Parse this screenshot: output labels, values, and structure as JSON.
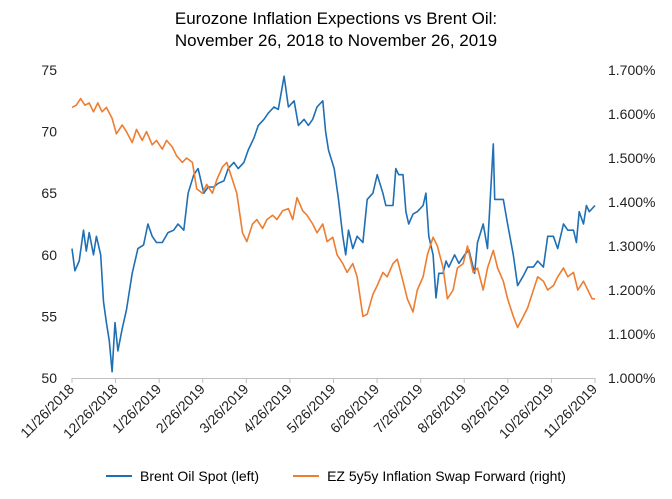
{
  "chart_data": {
    "type": "line",
    "title": [
      "Eurozone Inflation Expections vs Brent Oil:",
      "November 26, 2018 to November 26, 2019"
    ],
    "x_tick_labels": [
      "11/26/2018",
      "12/26/2018",
      "1/26/2019",
      "2/26/2019",
      "3/26/2019",
      "4/26/2019",
      "5/26/2019",
      "6/26/2019",
      "7/26/2019",
      "8/26/2019",
      "9/26/2019",
      "10/26/2019",
      "11/26/2019"
    ],
    "x_range": [
      "2018-11-26",
      "2019-11-26"
    ],
    "y_left": {
      "ticks": [
        "50",
        "55",
        "60",
        "65",
        "70",
        "75"
      ],
      "ylim": [
        50,
        75
      ]
    },
    "y_right": {
      "ticks": [
        "1.000%",
        "1.100%",
        "1.200%",
        "1.300%",
        "1.400%",
        "1.500%",
        "1.600%",
        "1.700%"
      ],
      "ylim": [
        1.0,
        1.7
      ]
    },
    "grid": false,
    "legend_position": "bottom",
    "series": [
      {
        "name": "Brent Oil Spot (left)",
        "axis": "left",
        "color": "#1f6fb4",
        "points": [
          [
            "2018-11-26",
            60.5
          ],
          [
            "2018-11-28",
            58.7
          ],
          [
            "2018-12-01",
            59.5
          ],
          [
            "2018-12-04",
            62.0
          ],
          [
            "2018-12-06",
            60.3
          ],
          [
            "2018-12-08",
            61.8
          ],
          [
            "2018-12-11",
            60.0
          ],
          [
            "2018-12-13",
            61.5
          ],
          [
            "2018-12-16",
            60.0
          ],
          [
            "2018-12-18",
            56.2
          ],
          [
            "2018-12-20",
            54.5
          ],
          [
            "2018-12-22",
            53.0
          ],
          [
            "2018-12-24",
            50.5
          ],
          [
            "2018-12-26",
            54.5
          ],
          [
            "2018-12-28",
            52.2
          ],
          [
            "2018-12-31",
            54.0
          ],
          [
            "2019-01-03",
            55.5
          ],
          [
            "2019-01-07",
            58.5
          ],
          [
            "2019-01-11",
            60.5
          ],
          [
            "2019-01-15",
            60.8
          ],
          [
            "2019-01-18",
            62.5
          ],
          [
            "2019-01-21",
            61.5
          ],
          [
            "2019-01-24",
            61.0
          ],
          [
            "2019-01-28",
            61.0
          ],
          [
            "2019-02-01",
            61.8
          ],
          [
            "2019-02-05",
            62.0
          ],
          [
            "2019-02-08",
            62.5
          ],
          [
            "2019-02-12",
            62.0
          ],
          [
            "2019-02-15",
            65.0
          ],
          [
            "2019-02-19",
            66.5
          ],
          [
            "2019-02-22",
            67.0
          ],
          [
            "2019-02-26",
            65.0
          ],
          [
            "2019-03-01",
            65.5
          ],
          [
            "2019-03-05",
            65.5
          ],
          [
            "2019-03-08",
            65.8
          ],
          [
            "2019-03-12",
            66.0
          ],
          [
            "2019-03-15",
            67.0
          ],
          [
            "2019-03-19",
            67.5
          ],
          [
            "2019-03-22",
            67.0
          ],
          [
            "2019-03-26",
            67.5
          ],
          [
            "2019-03-29",
            68.5
          ],
          [
            "2019-04-02",
            69.5
          ],
          [
            "2019-04-05",
            70.5
          ],
          [
            "2019-04-09",
            71.0
          ],
          [
            "2019-04-12",
            71.5
          ],
          [
            "2019-04-16",
            72.0
          ],
          [
            "2019-04-19",
            71.8
          ],
          [
            "2019-04-23",
            74.5
          ],
          [
            "2019-04-26",
            72.0
          ],
          [
            "2019-04-30",
            72.5
          ],
          [
            "2019-05-03",
            70.5
          ],
          [
            "2019-05-07",
            71.0
          ],
          [
            "2019-05-10",
            70.5
          ],
          [
            "2019-05-13",
            71.0
          ],
          [
            "2019-05-16",
            72.0
          ],
          [
            "2019-05-20",
            72.5
          ],
          [
            "2019-05-22",
            70.0
          ],
          [
            "2019-05-24",
            68.5
          ],
          [
            "2019-05-28",
            67.0
          ],
          [
            "2019-05-31",
            64.5
          ],
          [
            "2019-06-03",
            61.5
          ],
          [
            "2019-06-05",
            60.0
          ],
          [
            "2019-06-07",
            62.0
          ],
          [
            "2019-06-10",
            60.5
          ],
          [
            "2019-06-13",
            61.5
          ],
          [
            "2019-06-17",
            61.0
          ],
          [
            "2019-06-20",
            64.5
          ],
          [
            "2019-06-24",
            65.0
          ],
          [
            "2019-06-27",
            66.5
          ],
          [
            "2019-07-01",
            65.0
          ],
          [
            "2019-07-03",
            64.0
          ],
          [
            "2019-07-08",
            64.0
          ],
          [
            "2019-07-10",
            67.0
          ],
          [
            "2019-07-12",
            66.5
          ],
          [
            "2019-07-15",
            66.5
          ],
          [
            "2019-07-17",
            63.5
          ],
          [
            "2019-07-19",
            62.5
          ],
          [
            "2019-07-22",
            63.3
          ],
          [
            "2019-07-25",
            63.5
          ],
          [
            "2019-07-29",
            64.0
          ],
          [
            "2019-07-31",
            65.0
          ],
          [
            "2019-08-02",
            61.5
          ],
          [
            "2019-08-05",
            60.0
          ],
          [
            "2019-08-07",
            56.5
          ],
          [
            "2019-08-09",
            58.5
          ],
          [
            "2019-08-12",
            58.5
          ],
          [
            "2019-08-14",
            59.5
          ],
          [
            "2019-08-16",
            59.0
          ],
          [
            "2019-08-20",
            60.0
          ],
          [
            "2019-08-23",
            59.3
          ],
          [
            "2019-08-27",
            60.0
          ],
          [
            "2019-08-30",
            60.4
          ],
          [
            "2019-09-03",
            58.5
          ],
          [
            "2019-09-05",
            61.0
          ],
          [
            "2019-09-09",
            62.5
          ],
          [
            "2019-09-12",
            60.5
          ],
          [
            "2019-09-16",
            69.0
          ],
          [
            "2019-09-17",
            64.5
          ],
          [
            "2019-09-19",
            64.5
          ],
          [
            "2019-09-23",
            64.5
          ],
          [
            "2019-09-26",
            62.5
          ],
          [
            "2019-09-30",
            60.0
          ],
          [
            "2019-10-03",
            57.5
          ],
          [
            "2019-10-07",
            58.3
          ],
          [
            "2019-10-10",
            59.0
          ],
          [
            "2019-10-14",
            59.0
          ],
          [
            "2019-10-17",
            59.5
          ],
          [
            "2019-10-21",
            59.0
          ],
          [
            "2019-10-24",
            61.5
          ],
          [
            "2019-10-28",
            61.5
          ],
          [
            "2019-10-31",
            60.5
          ],
          [
            "2019-11-04",
            62.5
          ],
          [
            "2019-11-07",
            62.0
          ],
          [
            "2019-11-11",
            62.0
          ],
          [
            "2019-11-13",
            61.0
          ],
          [
            "2019-11-15",
            63.5
          ],
          [
            "2019-11-18",
            62.5
          ],
          [
            "2019-11-20",
            64.0
          ],
          [
            "2019-11-22",
            63.5
          ],
          [
            "2019-11-26",
            64.0
          ]
        ]
      },
      {
        "name": "EZ 5y5y Inflation Swap Forward (right)",
        "axis": "right",
        "color": "#ed7d31",
        "points": [
          [
            "2018-11-26",
            1.615
          ],
          [
            "2018-11-29",
            1.62
          ],
          [
            "2018-12-02",
            1.635
          ],
          [
            "2018-12-05",
            1.62
          ],
          [
            "2018-12-08",
            1.625
          ],
          [
            "2018-12-11",
            1.605
          ],
          [
            "2018-12-14",
            1.625
          ],
          [
            "2018-12-17",
            1.605
          ],
          [
            "2018-12-20",
            1.615
          ],
          [
            "2018-12-24",
            1.59
          ],
          [
            "2018-12-27",
            1.555
          ],
          [
            "2018-12-31",
            1.575
          ],
          [
            "2019-01-03",
            1.56
          ],
          [
            "2019-01-07",
            1.535
          ],
          [
            "2019-01-10",
            1.565
          ],
          [
            "2019-01-14",
            1.54
          ],
          [
            "2019-01-17",
            1.56
          ],
          [
            "2019-01-21",
            1.53
          ],
          [
            "2019-01-24",
            1.54
          ],
          [
            "2019-01-28",
            1.52
          ],
          [
            "2019-01-31",
            1.54
          ],
          [
            "2019-02-04",
            1.525
          ],
          [
            "2019-02-07",
            1.505
          ],
          [
            "2019-02-11",
            1.49
          ],
          [
            "2019-02-14",
            1.5
          ],
          [
            "2019-02-18",
            1.49
          ],
          [
            "2019-02-21",
            1.43
          ],
          [
            "2019-02-25",
            1.42
          ],
          [
            "2019-02-28",
            1.44
          ],
          [
            "2019-03-04",
            1.42
          ],
          [
            "2019-03-07",
            1.45
          ],
          [
            "2019-03-11",
            1.48
          ],
          [
            "2019-03-14",
            1.49
          ],
          [
            "2019-03-18",
            1.45
          ],
          [
            "2019-03-21",
            1.42
          ],
          [
            "2019-03-25",
            1.33
          ],
          [
            "2019-03-28",
            1.31
          ],
          [
            "2019-04-01",
            1.35
          ],
          [
            "2019-04-04",
            1.36
          ],
          [
            "2019-04-08",
            1.34
          ],
          [
            "2019-04-11",
            1.36
          ],
          [
            "2019-04-15",
            1.37
          ],
          [
            "2019-04-18",
            1.36
          ],
          [
            "2019-04-22",
            1.38
          ],
          [
            "2019-04-26",
            1.385
          ],
          [
            "2019-04-29",
            1.36
          ],
          [
            "2019-05-02",
            1.41
          ],
          [
            "2019-05-06",
            1.38
          ],
          [
            "2019-05-09",
            1.37
          ],
          [
            "2019-05-13",
            1.35
          ],
          [
            "2019-05-16",
            1.33
          ],
          [
            "2019-05-20",
            1.35
          ],
          [
            "2019-05-23",
            1.31
          ],
          [
            "2019-05-27",
            1.32
          ],
          [
            "2019-05-30",
            1.28
          ],
          [
            "2019-06-03",
            1.26
          ],
          [
            "2019-06-06",
            1.24
          ],
          [
            "2019-06-10",
            1.26
          ],
          [
            "2019-06-13",
            1.23
          ],
          [
            "2019-06-17",
            1.14
          ],
          [
            "2019-06-20",
            1.145
          ],
          [
            "2019-06-24",
            1.19
          ],
          [
            "2019-06-27",
            1.21
          ],
          [
            "2019-07-01",
            1.24
          ],
          [
            "2019-07-04",
            1.23
          ],
          [
            "2019-07-08",
            1.26
          ],
          [
            "2019-07-11",
            1.27
          ],
          [
            "2019-07-15",
            1.22
          ],
          [
            "2019-07-18",
            1.18
          ],
          [
            "2019-07-22",
            1.15
          ],
          [
            "2019-07-25",
            1.2
          ],
          [
            "2019-07-29",
            1.23
          ],
          [
            "2019-08-01",
            1.28
          ],
          [
            "2019-08-05",
            1.32
          ],
          [
            "2019-08-08",
            1.3
          ],
          [
            "2019-08-12",
            1.25
          ],
          [
            "2019-08-15",
            1.18
          ],
          [
            "2019-08-19",
            1.2
          ],
          [
            "2019-08-22",
            1.25
          ],
          [
            "2019-08-26",
            1.26
          ],
          [
            "2019-08-29",
            1.3
          ],
          [
            "2019-09-02",
            1.24
          ],
          [
            "2019-09-05",
            1.25
          ],
          [
            "2019-09-09",
            1.2
          ],
          [
            "2019-09-12",
            1.25
          ],
          [
            "2019-09-16",
            1.29
          ],
          [
            "2019-09-19",
            1.25
          ],
          [
            "2019-09-23",
            1.22
          ],
          [
            "2019-09-26",
            1.18
          ],
          [
            "2019-09-30",
            1.14
          ],
          [
            "2019-10-03",
            1.115
          ],
          [
            "2019-10-07",
            1.14
          ],
          [
            "2019-10-10",
            1.16
          ],
          [
            "2019-10-14",
            1.2
          ],
          [
            "2019-10-17",
            1.23
          ],
          [
            "2019-10-21",
            1.22
          ],
          [
            "2019-10-24",
            1.2
          ],
          [
            "2019-10-28",
            1.21
          ],
          [
            "2019-10-31",
            1.23
          ],
          [
            "2019-11-04",
            1.25
          ],
          [
            "2019-11-07",
            1.23
          ],
          [
            "2019-11-11",
            1.24
          ],
          [
            "2019-11-14",
            1.2
          ],
          [
            "2019-11-18",
            1.22
          ],
          [
            "2019-11-21",
            1.2
          ],
          [
            "2019-11-24",
            1.18
          ],
          [
            "2019-11-26",
            1.18
          ]
        ]
      }
    ]
  }
}
